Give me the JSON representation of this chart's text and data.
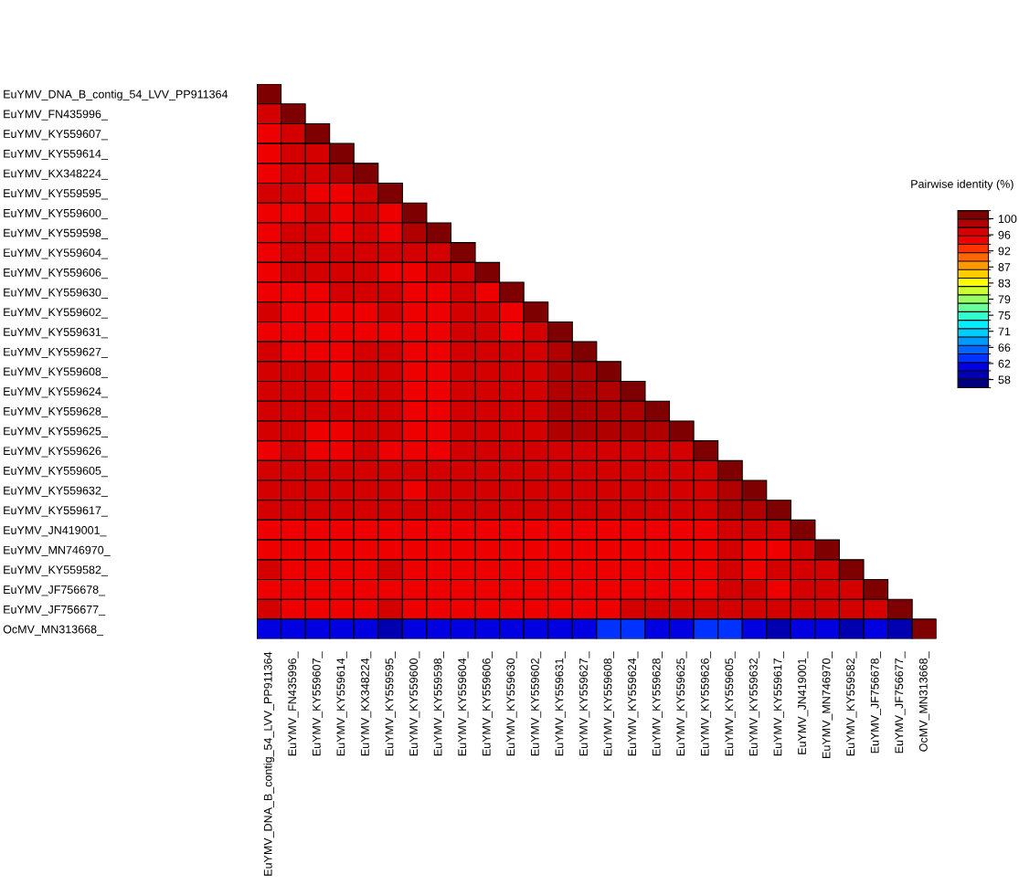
{
  "chart_data": {
    "type": "heatmap",
    "clabel": "Pairwise identity (%)",
    "categories": [
      "EuYMV_DNA_B_contig_54_LVV_PP911364",
      "EuYMV_FN435996_",
      "EuYMV_KY559607_",
      "EuYMV_KY559614_",
      "EuYMV_KX348224_",
      "EuYMV_KY559595_",
      "EuYMV_KY559600_",
      "EuYMV_KY559598_",
      "EuYMV_KY559604_",
      "EuYMV_KY559606_",
      "EuYMV_KY559630_",
      "EuYMV_KY559602_",
      "EuYMV_KY559631_",
      "EuYMV_KY559627_",
      "EuYMV_KY559608_",
      "EuYMV_KY559624_",
      "EuYMV_KY559628_",
      "EuYMV_KY559625_",
      "EuYMV_KY559626_",
      "EuYMV_KY559605_",
      "EuYMV_KY559632_",
      "EuYMV_KY559617_",
      "EuYMV_JN419001_",
      "EuYMV_MN746970_",
      "EuYMV_KY559582_",
      "EuYMV_JF756678_",
      "EuYMV_JF756677_",
      "OcMV_MN313668_"
    ],
    "y_categories": [
      "EuYMV_DNA_B_contig_54_LVV_PP911364",
      "EuYMV_FN435996_",
      "EuYMV_KY559607_",
      "EuYMV_KY559614_",
      "EuYMV_KX348224_",
      "EuYMV_KY559595_",
      "EuYMV_KY559600_",
      "EuYMV_KY559598_",
      "EuYMV_KY559604_",
      "EuYMV_KY559606_",
      "EuYMV_KY559630_",
      "EuYMV_KY559602_",
      "EuYMV_KY559631_",
      "EuYMV_KY559627_",
      "EuYMV_KY559608_",
      "EuYMV_KY559624_",
      "EuYMV_KY559628_",
      "EuYMV_KY559625_",
      "EuYMV_KY559626_",
      "EuYMV_KY559605_",
      "EuYMV_KY559632_",
      "EuYMV_KY559617_",
      "EuYMV_JN419001_",
      "EuYMV_MN746970_",
      "EuYMV_KY559582_",
      "EuYMV_JF756678_",
      "EuYMV_JF756677_",
      "OcMV_MN313668_"
    ],
    "cells": [
      [
        100,
        null,
        null,
        null,
        null,
        null,
        null,
        null,
        null,
        null,
        null,
        null,
        null,
        null,
        null,
        null,
        null,
        null,
        null,
        null,
        null,
        null,
        null,
        null,
        null,
        null,
        null,
        null
      ],
      [
        96,
        100,
        null,
        null,
        null,
        null,
        null,
        null,
        null,
        null,
        null,
        null,
        null,
        null,
        null,
        null,
        null,
        null,
        null,
        null,
        null,
        null,
        null,
        null,
        null,
        null,
        null,
        null
      ],
      [
        95,
        96,
        100,
        null,
        null,
        null,
        null,
        null,
        null,
        null,
        null,
        null,
        null,
        null,
        null,
        null,
        null,
        null,
        null,
        null,
        null,
        null,
        null,
        null,
        null,
        null,
        null,
        null
      ],
      [
        95,
        97,
        97,
        100,
        null,
        null,
        null,
        null,
        null,
        null,
        null,
        null,
        null,
        null,
        null,
        null,
        null,
        null,
        null,
        null,
        null,
        null,
        null,
        null,
        null,
        null,
        null,
        null
      ],
      [
        95,
        97,
        97,
        98,
        100,
        null,
        null,
        null,
        null,
        null,
        null,
        null,
        null,
        null,
        null,
        null,
        null,
        null,
        null,
        null,
        null,
        null,
        null,
        null,
        null,
        null,
        null,
        null
      ],
      [
        96,
        96,
        95,
        95,
        96,
        100,
        null,
        null,
        null,
        null,
        null,
        null,
        null,
        null,
        null,
        null,
        null,
        null,
        null,
        null,
        null,
        null,
        null,
        null,
        null,
        null,
        null,
        null
      ],
      [
        95,
        95,
        96,
        95,
        96,
        95,
        100,
        null,
        null,
        null,
        null,
        null,
        null,
        null,
        null,
        null,
        null,
        null,
        null,
        null,
        null,
        null,
        null,
        null,
        null,
        null,
        null,
        null
      ],
      [
        95,
        96,
        96,
        95,
        96,
        95,
        98,
        100,
        null,
        null,
        null,
        null,
        null,
        null,
        null,
        null,
        null,
        null,
        null,
        null,
        null,
        null,
        null,
        null,
        null,
        null,
        null,
        null
      ],
      [
        95,
        96,
        96,
        96,
        97,
        96,
        96,
        96,
        100,
        null,
        null,
        null,
        null,
        null,
        null,
        null,
        null,
        null,
        null,
        null,
        null,
        null,
        null,
        null,
        null,
        null,
        null,
        null
      ],
      [
        95,
        96,
        96,
        96,
        96,
        95,
        95,
        96,
        97,
        100,
        null,
        null,
        null,
        null,
        null,
        null,
        null,
        null,
        null,
        null,
        null,
        null,
        null,
        null,
        null,
        null,
        null,
        null
      ],
      [
        95,
        95,
        95,
        96,
        96,
        96,
        95,
        95,
        96,
        95,
        100,
        null,
        null,
        null,
        null,
        null,
        null,
        null,
        null,
        null,
        null,
        null,
        null,
        null,
        null,
        null,
        null,
        null
      ],
      [
        96,
        95,
        95,
        95,
        95,
        96,
        95,
        95,
        96,
        96,
        95,
        100,
        null,
        null,
        null,
        null,
        null,
        null,
        null,
        null,
        null,
        null,
        null,
        null,
        null,
        null,
        null,
        null
      ],
      [
        95,
        95,
        95,
        95,
        95,
        95,
        95,
        95,
        96,
        96,
        95,
        97,
        100,
        null,
        null,
        null,
        null,
        null,
        null,
        null,
        null,
        null,
        null,
        null,
        null,
        null,
        null,
        null
      ],
      [
        96,
        95,
        95,
        95,
        96,
        96,
        95,
        95,
        97,
        96,
        96,
        97,
        98,
        100,
        null,
        null,
        null,
        null,
        null,
        null,
        null,
        null,
        null,
        null,
        null,
        null,
        null,
        null
      ],
      [
        96,
        96,
        96,
        95,
        96,
        96,
        95,
        95,
        97,
        96,
        96,
        97,
        98,
        98,
        100,
        null,
        null,
        null,
        null,
        null,
        null,
        null,
        null,
        null,
        null,
        null,
        null,
        null
      ],
      [
        96,
        96,
        96,
        95,
        96,
        96,
        95,
        95,
        97,
        97,
        96,
        97,
        98,
        98,
        99,
        100,
        null,
        null,
        null,
        null,
        null,
        null,
        null,
        null,
        null,
        null,
        null,
        null
      ],
      [
        96,
        96,
        96,
        96,
        96,
        96,
        95,
        95,
        97,
        97,
        96,
        97,
        98,
        98,
        99,
        99,
        100,
        null,
        null,
        null,
        null,
        null,
        null,
        null,
        null,
        null,
        null,
        null
      ],
      [
        96,
        96,
        95,
        95,
        96,
        96,
        95,
        95,
        97,
        97,
        97,
        97,
        98,
        98,
        98,
        99,
        99,
        100,
        null,
        null,
        null,
        null,
        null,
        null,
        null,
        null,
        null,
        null
      ],
      [
        95,
        96,
        95,
        95,
        96,
        95,
        95,
        95,
        96,
        96,
        97,
        96,
        97,
        97,
        97,
        97,
        97,
        97,
        100,
        null,
        null,
        null,
        null,
        null,
        null,
        null,
        null,
        null
      ],
      [
        96,
        96,
        96,
        96,
        96,
        96,
        96,
        96,
        97,
        97,
        97,
        97,
        97,
        97,
        97,
        97,
        97,
        97,
        97,
        100,
        null,
        null,
        null,
        null,
        null,
        null,
        null,
        null
      ],
      [
        96,
        96,
        96,
        96,
        97,
        97,
        95,
        96,
        97,
        97,
        97,
        97,
        97,
        97,
        97,
        97,
        97,
        97,
        97,
        98,
        100,
        null,
        null,
        null,
        null,
        null,
        null,
        null
      ],
      [
        97,
        97,
        97,
        96,
        97,
        97,
        96,
        96,
        97,
        97,
        97,
        97,
        97,
        97,
        97,
        97,
        97,
        97,
        97,
        98,
        99,
        100,
        null,
        null,
        null,
        null,
        null,
        null
      ],
      [
        95,
        95,
        95,
        95,
        95,
        95,
        94,
        95,
        95,
        95,
        95,
        95,
        95,
        95,
        95,
        95,
        95,
        95,
        95,
        96,
        96,
        96,
        100,
        null,
        null,
        null,
        null,
        null
      ],
      [
        95,
        95,
        95,
        94,
        95,
        95,
        94,
        94,
        95,
        95,
        95,
        95,
        95,
        95,
        95,
        95,
        95,
        95,
        94,
        96,
        95,
        95,
        96,
        100,
        null,
        null,
        null,
        null
      ],
      [
        96,
        95,
        95,
        95,
        95,
        96,
        95,
        95,
        95,
        95,
        95,
        95,
        95,
        95,
        95,
        95,
        95,
        95,
        95,
        96,
        95,
        96,
        96,
        97,
        100,
        null,
        null,
        null
      ],
      [
        95,
        95,
        95,
        95,
        95,
        95,
        95,
        95,
        95,
        95,
        95,
        95,
        95,
        95,
        95,
        95,
        95,
        95,
        95,
        96,
        96,
        95,
        96,
        96,
        97,
        100,
        null,
        null
      ],
      [
        96,
        95,
        95,
        95,
        95,
        96,
        95,
        95,
        95,
        95,
        95,
        95,
        95,
        95,
        95,
        96,
        96,
        96,
        96,
        96,
        96,
        96,
        96,
        96,
        97,
        97,
        100,
        null
      ],
      [
        62,
        61,
        61,
        61,
        62,
        60,
        61,
        61,
        62,
        62,
        62,
        62,
        62,
        62,
        63,
        63,
        61,
        62,
        63,
        63,
        62,
        59,
        62,
        61,
        60,
        61,
        60,
        100
      ]
    ],
    "clim": [
      55.9,
      102.1
    ],
    "cticks": [
      100,
      {
        "value": 95.8,
        "label": "96"
      },
      {
        "value": 91.6,
        "label": "92"
      },
      {
        "value": 87.4,
        "label": "87"
      },
      {
        "value": 83.2,
        "label": "83"
      },
      {
        "value": 79,
        "label": "79"
      },
      {
        "value": 74.8,
        "label": "75"
      },
      {
        "value": 70.6,
        "label": "71"
      },
      {
        "value": 66.4,
        "label": "66"
      },
      {
        "value": 62.2,
        "label": "62"
      },
      58
    ],
    "grid": false
  }
}
